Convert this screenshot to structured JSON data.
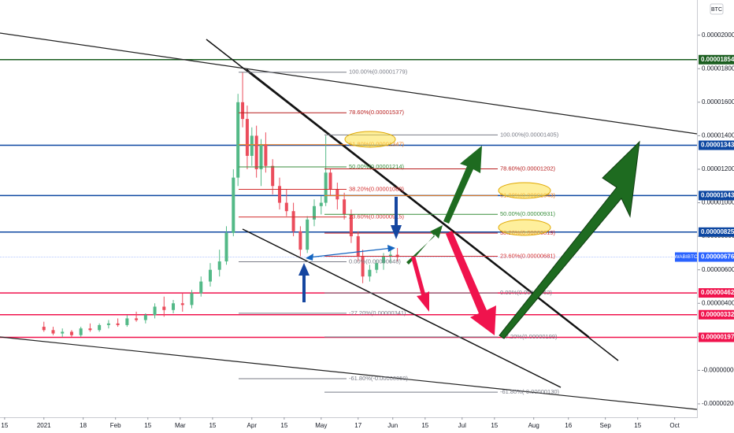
{
  "chart_data": {
    "type": "candlestick",
    "currency": "BTC",
    "x": [
      "2021-01-01",
      "2021-01-05",
      "2021-01-09",
      "2021-01-13",
      "2021-01-17",
      "2021-01-21",
      "2021-01-25",
      "2021-01-29",
      "2021-02-02",
      "2021-02-06",
      "2021-02-10",
      "2021-02-14",
      "2021-02-18",
      "2021-02-22",
      "2021-02-26",
      "2021-03-02",
      "2021-03-06",
      "2021-03-10",
      "2021-03-14",
      "2021-03-18",
      "2021-03-21",
      "2021-03-24",
      "2021-03-26",
      "2021-03-28",
      "2021-03-30",
      "2021-04-01",
      "2021-04-03",
      "2021-04-05",
      "2021-04-07",
      "2021-04-10",
      "2021-04-13",
      "2021-04-16",
      "2021-04-19",
      "2021-04-22",
      "2021-04-25",
      "2021-04-28",
      "2021-05-01",
      "2021-05-03",
      "2021-05-05",
      "2021-05-08",
      "2021-05-11",
      "2021-05-14",
      "2021-05-17",
      "2021-05-19",
      "2021-05-22",
      "2021-05-25",
      "2021-05-28",
      "2021-05-31",
      "2021-06-03"
    ],
    "open": [
      2.6e-06,
      2.4e-06,
      2.2e-06,
      2.3e-06,
      2.1e-06,
      2.5e-06,
      2.4e-06,
      2.7e-06,
      2.8e-06,
      2.7e-06,
      3.1e-06,
      3e-06,
      3.3e-06,
      3.8e-06,
      3.6e-06,
      4e-06,
      3.9e-06,
      4.6e-06,
      5.3e-06,
      6e-06,
      6.5e-06,
      8.2e-06,
      1.15e-05,
      1.6e-05,
      1.5e-05,
      1.28e-05,
      1.4e-05,
      1.2e-05,
      1.35e-05,
      1.22e-05,
      1.1e-05,
      1e-05,
      9.5e-06,
      8.3e-06,
      7.2e-06,
      9e-06,
      9.8e-06,
      1e-05,
      1.18e-05,
      1.08e-05,
      1.02e-05,
      9.3e-06,
      8e-06,
      6.8e-06,
      5.6e-06,
      6e-06,
      6.4e-06,
      6.8e-06,
      6.9e-06
    ],
    "high": [
      2.9e-06,
      2.6e-06,
      2.5e-06,
      2.4e-06,
      2.6e-06,
      2.8e-06,
      2.8e-06,
      3e-06,
      3.1e-06,
      3.3e-06,
      3.5e-06,
      3.4e-06,
      4e-06,
      4.4e-06,
      4.2e-06,
      4.6e-06,
      4.8e-06,
      5.6e-06,
      6.4e-06,
      7.2e-06,
      8.6e-06,
      1.2e-05,
      1.65e-05,
      1.78e-05,
      1.58e-05,
      1.45e-05,
      1.46e-05,
      1.38e-05,
      1.42e-05,
      1.26e-05,
      1.15e-05,
      1.08e-05,
      1e-05,
      8.6e-06,
      9.2e-06,
      1.02e-05,
      1.04e-05,
      1.4e-05,
      1.2e-05,
      1.12e-05,
      1.06e-05,
      9.6e-06,
      8.3e-06,
      7.2e-06,
      6.3e-06,
      6.6e-06,
      7e-06,
      7.2e-06,
      7.3e-06
    ],
    "low": [
      2.3e-06,
      2.1e-06,
      2e-06,
      2e-06,
      2e-06,
      2.3e-06,
      2.3e-06,
      2.5e-06,
      2.6e-06,
      2.6e-06,
      2.9e-06,
      2.8e-06,
      3.1e-06,
      3.2e-06,
      3.4e-06,
      3.5e-06,
      3.7e-06,
      4.4e-06,
      5e-06,
      5.6e-06,
      6.3e-06,
      8e-06,
      1.1e-05,
      1.45e-05,
      1.2e-05,
      1.22e-05,
      1.15e-05,
      1.1e-05,
      1.18e-05,
      1.05e-05,
      9.6e-06,
      9.2e-06,
      8e-06,
      6.8e-06,
      7e-06,
      8.6e-06,
      9.3e-06,
      9.8e-06,
      1.04e-05,
      9.6e-06,
      9e-06,
      7.6e-06,
      6.5e-06,
      5.2e-06,
      5.3e-06,
      5.8e-06,
      6e-06,
      6.4e-06,
      6.5e-06
    ],
    "close": [
      2.4e-06,
      2.2e-06,
      2.3e-06,
      2.1e-06,
      2.5e-06,
      2.4e-06,
      2.7e-06,
      2.8e-06,
      2.7e-06,
      3.1e-06,
      3e-06,
      3.3e-06,
      3.8e-06,
      3.6e-06,
      4e-06,
      3.9e-06,
      4.6e-06,
      5.3e-06,
      6e-06,
      6.5e-06,
      8.2e-06,
      1.15e-05,
      1.6e-05,
      1.5e-05,
      1.28e-05,
      1.4e-05,
      1.2e-05,
      1.35e-05,
      1.22e-05,
      1.1e-05,
      1e-05,
      9.5e-06,
      8.3e-06,
      7.2e-06,
      9e-06,
      9.8e-06,
      1e-05,
      1.18e-05,
      1.08e-05,
      1.02e-05,
      9.3e-06,
      8e-06,
      6.8e-06,
      5.6e-06,
      6e-06,
      6.4e-06,
      6.8e-06,
      6.9e-06,
      6.76e-06
    ],
    "up_color": "#53b987",
    "down_color": "#eb4d5c",
    "xlim": [
      "2020-12-13",
      "2021-10-11"
    ],
    "xticks": [
      {
        "value": "2020-12-15",
        "label": "15"
      },
      {
        "value": "2021-01-01",
        "label": "2021"
      },
      {
        "value": "2021-01-18",
        "label": "18"
      },
      {
        "value": "2021-02-01",
        "label": "Feb"
      },
      {
        "value": "2021-02-15",
        "label": "15"
      },
      {
        "value": "2021-03-01",
        "label": "Mar"
      },
      {
        "value": "2021-03-15",
        "label": "15"
      },
      {
        "value": "2021-04-01",
        "label": "Apr"
      },
      {
        "value": "2021-04-15",
        "label": "15"
      },
      {
        "value": "2021-05-01",
        "label": "May"
      },
      {
        "value": "2021-05-17",
        "label": "17"
      },
      {
        "value": "2021-06-01",
        "label": "Jun"
      },
      {
        "value": "2021-06-15",
        "label": "15"
      },
      {
        "value": "2021-07-01",
        "label": "Jul"
      },
      {
        "value": "2021-07-15",
        "label": "15"
      },
      {
        "value": "2021-08-01",
        "label": "Aug"
      },
      {
        "value": "2021-08-16",
        "label": "16"
      },
      {
        "value": "2021-09-01",
        "label": "Sep"
      },
      {
        "value": "2021-09-15",
        "label": "15"
      },
      {
        "value": "2021-10-01",
        "label": "Oct"
      }
    ],
    "ylim": [
      -2.8e-06,
      2.21e-05
    ],
    "yticks": [
      {
        "value": 2e-05,
        "label": "0.00002000"
      },
      {
        "value": 1.8e-05,
        "label": "0.00001800"
      },
      {
        "value": 1.6e-05,
        "label": "0.00001600"
      },
      {
        "value": 1.4e-05,
        "label": "0.00001400"
      },
      {
        "value": 1.2e-05,
        "label": "0.00001200"
      },
      {
        "value": 1e-05,
        "label": "0.00001000"
      },
      {
        "value": 8e-06,
        "label": "0.00000800"
      },
      {
        "value": 6e-06,
        "label": "0.00000600"
      },
      {
        "value": 4e-06,
        "label": "0.00000400"
      },
      {
        "value": 2e-06,
        "label": "0.00000200"
      },
      {
        "value": 0,
        "label": "-0.00000000"
      },
      {
        "value": -2e-06,
        "label": "-0.00000200"
      }
    ],
    "price_lines": [
      {
        "value": 1.854e-05,
        "label": "0.00001854",
        "color": "#1b5e20"
      },
      {
        "value": 1.343e-05,
        "label": "0.00001343",
        "color": "#0d47a1"
      },
      {
        "value": 1.043e-05,
        "label": "0.00001043",
        "color": "#0d47a1"
      },
      {
        "value": 8.25e-06,
        "label": "0.00000825",
        "color": "#0d47a1"
      },
      {
        "value": 4.62e-06,
        "label": "0.00000462",
        "color": "#f0134d"
      },
      {
        "value": 3.32e-06,
        "label": "0.00000332",
        "color": "#f0134d"
      },
      {
        "value": 1.97e-06,
        "label": "0.00000197",
        "color": "#f0134d"
      }
    ],
    "last_price": {
      "symbol": "WABIBTC",
      "value": 6.76e-06,
      "label": "0.00000676",
      "color": "#2962ff"
    },
    "fib_retracements": [
      {
        "levels": [
          {
            "value": 1.779e-05,
            "label": "100.00%(0.00001779)"
          },
          {
            "value": 1.537e-05,
            "label": "78.60%(0.00001537)"
          },
          {
            "value": 1.347e-05,
            "label": "61.80%(0.00001347)"
          },
          {
            "value": 1.214e-05,
            "label": "50.00%(0.00001214)"
          },
          {
            "value": 1.08e-05,
            "label": "38.20%(0.00001080)"
          },
          {
            "value": 9.15e-06,
            "label": "23.60%(0.00000915)"
          },
          {
            "value": 6.48e-06,
            "label": "0.00%(0.00000648)"
          },
          {
            "value": 3.41e-06,
            "label": "-27.20%(0.00000341)"
          },
          {
            "value": -5e-07,
            "label": "-61.80%(-0.00000050)"
          }
        ]
      },
      {
        "levels": [
          {
            "value": 1.405e-05,
            "label": "100.00%(0.00001405)"
          },
          {
            "value": 1.202e-05,
            "label": "78.60%(0.00001202)"
          },
          {
            "value": 1.043e-05,
            "label": "61.80%(0.00001043)"
          },
          {
            "value": 9.31e-06,
            "label": "50.00%(0.00000931)"
          },
          {
            "value": 8.19e-06,
            "label": "38.20%(0.00000819)"
          },
          {
            "value": 6.81e-06,
            "label": "23.60%(0.00000681)"
          },
          {
            "value": 4.62e-06,
            "label": "0.00%(0.00000462)"
          },
          {
            "value": 1.99e-06,
            "label": "-27.20%(0.00000199)"
          },
          {
            "value": -1.3e-06,
            "label": "-61.80%(-0.00000130)"
          }
        ]
      }
    ]
  }
}
